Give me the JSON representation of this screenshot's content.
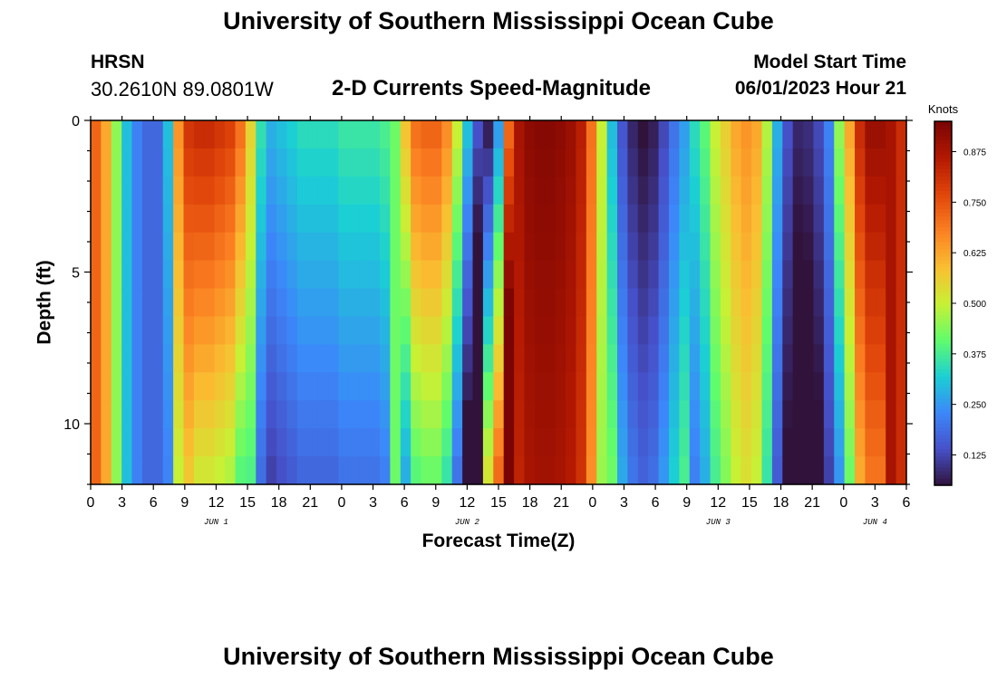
{
  "page": {
    "title": "University of Southern Mississippi Ocean Cube",
    "station": "HRSN",
    "coords": "30.2610N  89.0801W",
    "subtitle": "2-D Currents Speed-Magnitude",
    "model_label": "Model Start Time",
    "model_time": "06/01/2023 Hour 21",
    "footer_title": "University of Southern Mississippi Ocean Cube"
  },
  "chart_data": {
    "type": "heatmap",
    "title": "2-D Currents Speed-Magnitude",
    "xlabel": "Forecast Time(Z)",
    "ylabel": "Depth (ft)",
    "x_tick_labels": [
      "0",
      "3",
      "6",
      "9",
      "12",
      "15",
      "18",
      "21",
      "0",
      "3",
      "6",
      "9",
      "12",
      "15",
      "18",
      "21",
      "0",
      "3",
      "6",
      "9",
      "12",
      "15",
      "18",
      "21",
      "0",
      "3",
      "6"
    ],
    "x_range_hours": [
      0,
      78
    ],
    "x_tick_step_hours": 3,
    "day_labels": [
      {
        "label": "JUN 1",
        "hour": 12
      },
      {
        "label": "JUN 2",
        "hour": 36
      },
      {
        "label": "JUN 3",
        "hour": 60
      },
      {
        "label": "JUN 4",
        "hour": 75
      }
    ],
    "y_ticks": [
      0,
      5,
      10
    ],
    "y_range_ft": [
      0,
      12
    ],
    "colorbar": {
      "label": "Knots",
      "ticks": [
        "0.125",
        "0.250",
        "0.375",
        "0.500",
        "0.625",
        "0.750",
        "0.875"
      ],
      "range": [
        0.05,
        0.95
      ]
    },
    "time_step_hours": 1,
    "depth_levels_ft": [
      0,
      1,
      2,
      3,
      4,
      5,
      6,
      7,
      8,
      9,
      10,
      11,
      12
    ],
    "surface_speed_knots": [
      0.72,
      0.62,
      0.45,
      0.3,
      0.22,
      0.18,
      0.18,
      0.3,
      0.65,
      0.8,
      0.82,
      0.82,
      0.8,
      0.78,
      0.7,
      0.55,
      0.35,
      0.28,
      0.3,
      0.32,
      0.34,
      0.34,
      0.34,
      0.34,
      0.36,
      0.36,
      0.36,
      0.36,
      0.38,
      0.42,
      0.58,
      0.7,
      0.72,
      0.72,
      0.66,
      0.5,
      0.3,
      0.14,
      0.07,
      0.26,
      0.72,
      0.88,
      0.92,
      0.93,
      0.93,
      0.92,
      0.9,
      0.85,
      0.7,
      0.5,
      0.3,
      0.15,
      0.08,
      0.05,
      0.07,
      0.13,
      0.2,
      0.26,
      0.34,
      0.4,
      0.5,
      0.56,
      0.62,
      0.65,
      0.62,
      0.48,
      0.28,
      0.14,
      0.08,
      0.09,
      0.13,
      0.22,
      0.45,
      0.62,
      0.82,
      0.9,
      0.9,
      0.88,
      0.82
    ]
  }
}
